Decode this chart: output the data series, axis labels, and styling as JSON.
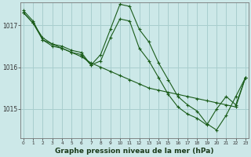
{
  "background_color": "#cce8e8",
  "grid_color": "#a8cece",
  "line_color": "#1a5c1a",
  "xlabel": "Graphe pression niveau de la mer (hPa)",
  "xlabel_fontsize": 6.5,
  "ylim": [
    1014.3,
    1017.55
  ],
  "xlim": [
    -0.3,
    23.3
  ],
  "yticks": [
    1015,
    1016,
    1017
  ],
  "xticks": [
    0,
    1,
    2,
    3,
    4,
    5,
    6,
    7,
    8,
    9,
    10,
    11,
    12,
    13,
    14,
    15,
    16,
    17,
    18,
    19,
    20,
    21,
    22,
    23
  ],
  "line1_x": [
    0,
    1,
    2,
    3,
    4,
    5,
    6,
    7,
    8,
    9,
    10,
    11,
    12,
    13,
    14,
    15,
    16,
    17,
    18,
    19,
    20,
    21,
    22,
    23
  ],
  "line1_y": [
    1017.3,
    1017.05,
    1016.7,
    1016.55,
    1016.45,
    1016.35,
    1016.25,
    1016.1,
    1016.0,
    1015.9,
    1015.8,
    1015.7,
    1015.6,
    1015.5,
    1015.45,
    1015.4,
    1015.35,
    1015.3,
    1015.25,
    1015.2,
    1015.15,
    1015.1,
    1015.05,
    1015.75
  ],
  "line2_x": [
    0,
    1,
    2,
    3,
    4,
    5,
    6,
    7,
    8,
    9,
    10,
    11,
    12,
    13,
    14,
    15,
    16,
    17,
    18,
    19,
    20,
    21,
    22,
    23
  ],
  "line2_y": [
    1017.35,
    1017.1,
    1016.65,
    1016.55,
    1016.5,
    1016.4,
    1016.35,
    1016.05,
    1016.3,
    1016.9,
    1017.5,
    1017.45,
    1016.9,
    1016.6,
    1016.1,
    1015.7,
    1015.3,
    1015.1,
    1014.95,
    1014.65,
    1014.5,
    1014.85,
    1015.3,
    1015.75
  ],
  "line3_x": [
    0,
    1,
    2,
    3,
    4,
    5,
    6,
    7,
    8,
    9,
    10,
    11,
    12,
    13,
    14,
    15,
    16,
    17,
    18,
    19,
    20,
    21,
    22,
    23
  ],
  "line3_y": [
    1017.3,
    1017.05,
    1016.65,
    1016.5,
    1016.45,
    1016.35,
    1016.3,
    1016.05,
    1016.15,
    1016.7,
    1017.15,
    1017.1,
    1016.45,
    1016.15,
    1015.75,
    1015.35,
    1015.05,
    1014.88,
    1014.78,
    1014.62,
    1015.0,
    1015.3,
    1015.1,
    1015.75
  ]
}
